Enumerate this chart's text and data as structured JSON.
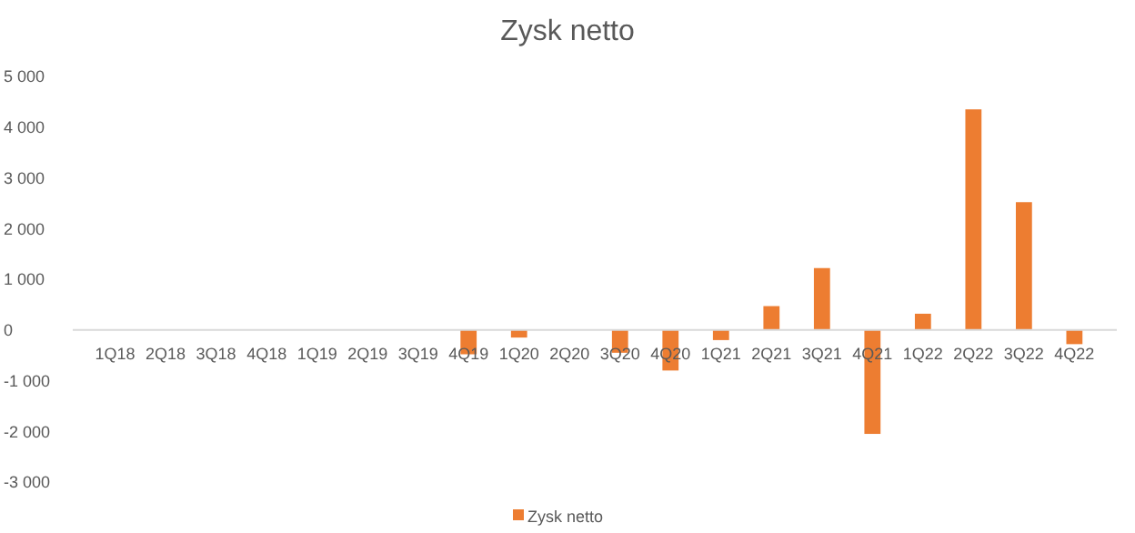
{
  "chart_data": {
    "type": "bar",
    "title": "Zysk netto",
    "categories": [
      "1Q18",
      "2Q18",
      "3Q18",
      "4Q18",
      "1Q19",
      "2Q19",
      "3Q19",
      "4Q19",
      "1Q20",
      "2Q20",
      "3Q20",
      "4Q20",
      "1Q21",
      "2Q21",
      "3Q21",
      "4Q21",
      "1Q22",
      "2Q22",
      "3Q22",
      "4Q22"
    ],
    "series": [
      {
        "name": "Zysk netto",
        "color": "#ed7d31",
        "values": [
          0,
          0,
          0,
          0,
          0,
          0,
          0,
          -480,
          -150,
          0,
          -450,
          -800,
          -200,
          470,
          1220,
          -2050,
          320,
          4350,
          2520,
          -280
        ]
      }
    ],
    "ylim": [
      -3000,
      5000
    ],
    "yticks": [
      {
        "value": -3000,
        "label": "-3 000"
      },
      {
        "value": -2000,
        "label": "-2 000"
      },
      {
        "value": -1000,
        "label": "-1 000"
      },
      0,
      {
        "value": 1000,
        "label": "1 000"
      },
      {
        "value": 2000,
        "label": "2 000"
      },
      {
        "value": 3000,
        "label": "3 000"
      },
      {
        "value": 4000,
        "label": "4 000"
      },
      {
        "value": 5000,
        "label": "5 000"
      }
    ],
    "grid": false,
    "legend": "bottom"
  }
}
